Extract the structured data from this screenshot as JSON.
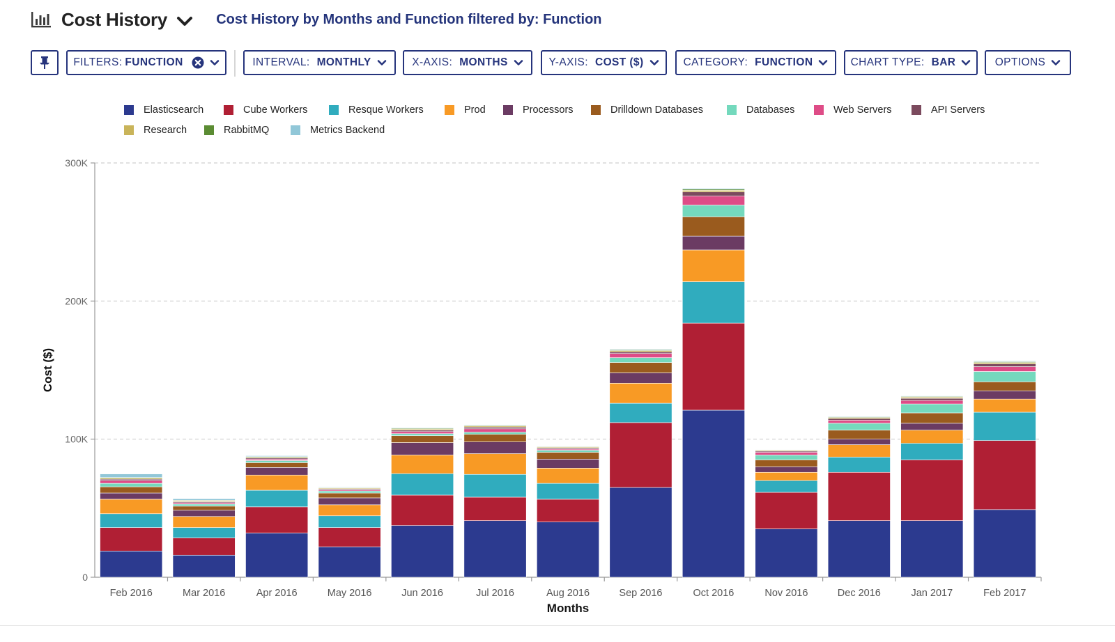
{
  "header": {
    "title": "Cost History",
    "subtitle": "Cost History by Months and Function filtered by: Function"
  },
  "toolbar": {
    "filters_label": "FILTERS:",
    "filters_value": "FUNCTION",
    "interval_label": "INTERVAL:",
    "interval_value": "MONTHLY",
    "xaxis_label": "X-AXIS:",
    "xaxis_value": "MONTHS",
    "yaxis_label": "Y-AXIS:",
    "yaxis_value": "COST ($)",
    "category_label": "CATEGORY:",
    "category_value": "FUNCTION",
    "charttype_label": "CHART TYPE:",
    "charttype_value": "BAR",
    "options_label": "OPTIONS"
  },
  "icons": {
    "chart": "bar-chart-icon",
    "pin": "pin-icon",
    "clear": "close-circle-icon",
    "dropdown": "chevron-down-icon"
  },
  "colors": {
    "accent": "#26347c",
    "subtitle": "#23337a",
    "grid": "#cfcfcf",
    "axis": "#999999"
  },
  "chart_data": {
    "type": "bar",
    "stacked": true,
    "xlabel": "Months",
    "ylabel": "Cost ($)",
    "ylim": [
      0,
      300000
    ],
    "yticks": [
      0,
      100000,
      200000,
      300000
    ],
    "ytick_labels": [
      "0",
      "100K",
      "200K",
      "300K"
    ],
    "grid": true,
    "legend_position": "top",
    "categories": [
      "Feb 2016",
      "Mar 2016",
      "Apr 2016",
      "May 2016",
      "Jun 2016",
      "Jul 2016",
      "Aug 2016",
      "Sep 2016",
      "Oct 2016",
      "Nov 2016",
      "Dec 2016",
      "Jan 2017",
      "Feb 2017"
    ],
    "series": [
      {
        "name": "Elasticsearch",
        "color": "#2c3a8f",
        "values": [
          19000,
          16000,
          32000,
          22000,
          37500,
          41000,
          40000,
          65000,
          121000,
          35000,
          41000,
          41000,
          49000
        ]
      },
      {
        "name": "Cube Workers",
        "color": "#b01f34",
        "values": [
          17000,
          12500,
          19000,
          14000,
          22000,
          17000,
          16500,
          47000,
          63000,
          26500,
          35000,
          44000,
          50000
        ]
      },
      {
        "name": "Resque Workers",
        "color": "#30acbe",
        "values": [
          10000,
          7500,
          12000,
          8500,
          15500,
          16500,
          11500,
          14000,
          30000,
          8500,
          11000,
          12000,
          20500
        ]
      },
      {
        "name": "Prod",
        "color": "#f89a25",
        "values": [
          10500,
          8000,
          11000,
          8000,
          13500,
          15000,
          11000,
          14500,
          23000,
          6000,
          9000,
          9500,
          9500
        ]
      },
      {
        "name": "Processors",
        "color": "#6b3b63",
        "values": [
          4500,
          4500,
          5500,
          5000,
          9000,
          8500,
          6500,
          7500,
          10000,
          4000,
          4000,
          5000,
          6000
        ]
      },
      {
        "name": "Drilldown Databases",
        "color": "#9a5b1e",
        "values": [
          4500,
          3000,
          3500,
          3500,
          5000,
          5500,
          5000,
          7500,
          14000,
          5000,
          6500,
          7500,
          6500
        ]
      },
      {
        "name": "Databases",
        "color": "#74d9bd",
        "values": [
          2500,
          1500,
          1500,
          1500,
          1500,
          1500,
          1500,
          3500,
          8500,
          3500,
          5000,
          6500,
          7500
        ]
      },
      {
        "name": "Web Servers",
        "color": "#de4c87",
        "values": [
          2000,
          1000,
          1000,
          800,
          1500,
          2500,
          800,
          3000,
          6500,
          2000,
          2200,
          2500,
          3500
        ]
      },
      {
        "name": "API Servers",
        "color": "#7b4a5e",
        "values": [
          1000,
          700,
          800,
          700,
          1000,
          1200,
          800,
          1200,
          3000,
          800,
          1200,
          1500,
          2000
        ]
      },
      {
        "name": "Research",
        "color": "#c9b45a",
        "values": [
          800,
          700,
          600,
          600,
          800,
          800,
          600,
          900,
          1200,
          600,
          800,
          900,
          1000
        ]
      },
      {
        "name": "RabbitMQ",
        "color": "#5b8c33",
        "values": [
          500,
          400,
          500,
          400,
          500,
          500,
          400,
          600,
          800,
          400,
          500,
          500,
          600
        ]
      },
      {
        "name": "Metrics Backend",
        "color": "#91c7d8",
        "values": [
          2500,
          1000,
          600,
          400,
          400,
          400,
          300,
          500,
          600,
          300,
          400,
          400,
          500
        ]
      }
    ]
  }
}
